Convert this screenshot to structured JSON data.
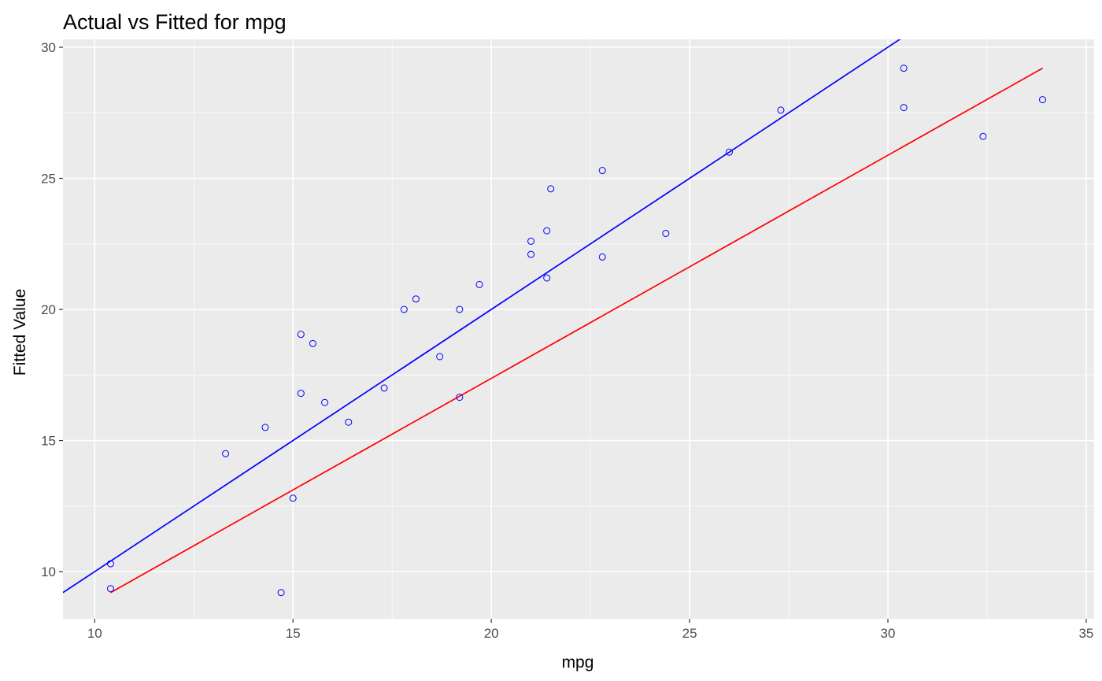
{
  "chart_data": {
    "type": "scatter",
    "title": "Actual vs Fitted for mpg",
    "xlabel": "mpg",
    "ylabel": "Fitted Value",
    "xlim": [
      9.2,
      35.2
    ],
    "ylim": [
      8.2,
      30.3
    ],
    "x_ticks": [
      10,
      15,
      20,
      25,
      30,
      35
    ],
    "y_ticks": [
      10,
      15,
      20,
      25,
      30
    ],
    "grid": true,
    "panel_background": "#ebebeb",
    "grid_color": "#ffffff",
    "points": {
      "color": "#0000ff",
      "x": [
        21.0,
        21.0,
        22.8,
        21.4,
        18.7,
        18.1,
        14.3,
        24.4,
        22.8,
        19.2,
        17.8,
        16.4,
        17.3,
        15.2,
        10.4,
        10.4,
        14.7,
        32.4,
        30.4,
        33.9,
        21.5,
        15.5,
        15.2,
        13.3,
        19.2,
        27.3,
        26.0,
        30.4,
        15.8,
        19.7,
        15.0,
        21.4
      ],
      "y": [
        22.6,
        22.1,
        25.3,
        21.2,
        18.2,
        20.4,
        15.5,
        22.9,
        22.0,
        20.0,
        20.0,
        15.7,
        17.0,
        16.8,
        10.3,
        9.35,
        9.2,
        26.6,
        29.2,
        28.0,
        24.6,
        18.7,
        19.05,
        14.5,
        16.65,
        27.6,
        26.0,
        27.7,
        16.45,
        20.95,
        12.8,
        23.0
      ]
    },
    "lines": [
      {
        "color": "#0000ff",
        "slope": 1.0,
        "intercept": 0.0
      },
      {
        "color": "#ff0000",
        "x": [
          10.4,
          33.9
        ],
        "y": [
          9.2,
          29.2
        ]
      }
    ]
  }
}
